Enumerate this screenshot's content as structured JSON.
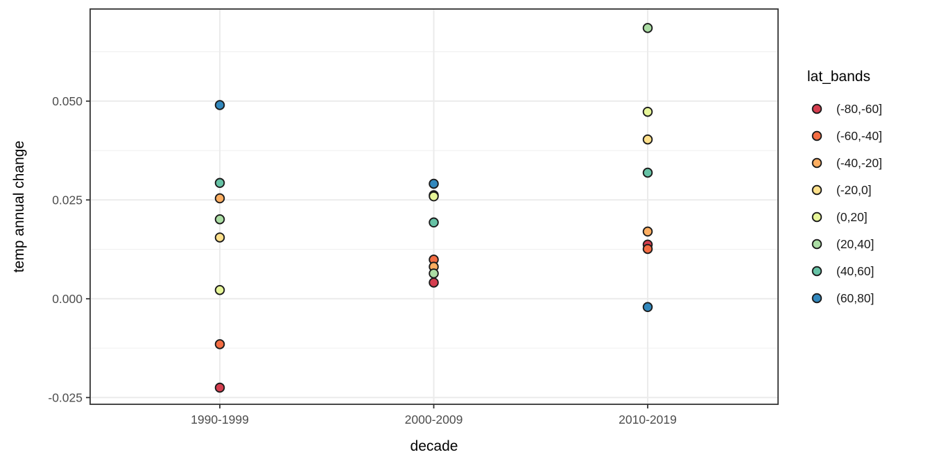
{
  "figure": {
    "y_axis_title": "temp annual change",
    "x_axis_title": "decade",
    "legend_title": "lat_bands"
  },
  "chart_data": {
    "type": "scatter",
    "title": "",
    "xlabel": "decade",
    "ylabel": "temp annual change",
    "categories": [
      "1990-1999",
      "2000-2009",
      "2010-2019"
    ],
    "y_major_ticks": [
      0.05,
      0.025,
      0.0,
      -0.025
    ],
    "y_tick_labels": [
      "0.050",
      "0.025",
      "0.000",
      "-0.025"
    ],
    "y_minor_ticks": [
      0.0625,
      0.0375,
      0.0125,
      -0.0125
    ],
    "ylim": [
      -0.0267,
      0.0733
    ],
    "grid": true,
    "legend_position": "right",
    "legend_title": "lat_bands",
    "series": [
      {
        "name": "(-80,-60]",
        "color": "#d53e4f",
        "values": [
          -0.0225,
          0.0041,
          0.0137
        ]
      },
      {
        "name": "(-60,-40]",
        "color": "#f46d43",
        "values": [
          -0.0115,
          0.0099,
          0.0126
        ]
      },
      {
        "name": "(-40,-20]",
        "color": "#fdae61",
        "values": [
          0.0254,
          0.0081,
          0.017
        ]
      },
      {
        "name": "(-20,0]",
        "color": "#fee08b",
        "values": [
          0.0155,
          0.0262,
          0.0403
        ]
      },
      {
        "name": "(0,20]",
        "color": "#e6f598",
        "values": [
          0.0022,
          0.0259,
          0.0473
        ]
      },
      {
        "name": "(20,40]",
        "color": "#abdda4",
        "values": [
          0.0201,
          0.0064,
          0.0685
        ]
      },
      {
        "name": "(40,60]",
        "color": "#66c2a5",
        "values": [
          0.0293,
          0.0193,
          0.0319
        ]
      },
      {
        "name": "(60,80]",
        "color": "#3288bd",
        "values": [
          0.049,
          0.0291,
          -0.0021
        ]
      }
    ],
    "style": {
      "point_outline": "#1a1a1a",
      "grid_major_color": "#ebebeb",
      "grid_minor_color": "#f0f0f0",
      "panel_border_color": "#333333",
      "tick_mark_color": "#333333",
      "tick_label_color": "#4d4d4d",
      "title_color": "#000000",
      "background": "#ffffff"
    }
  }
}
